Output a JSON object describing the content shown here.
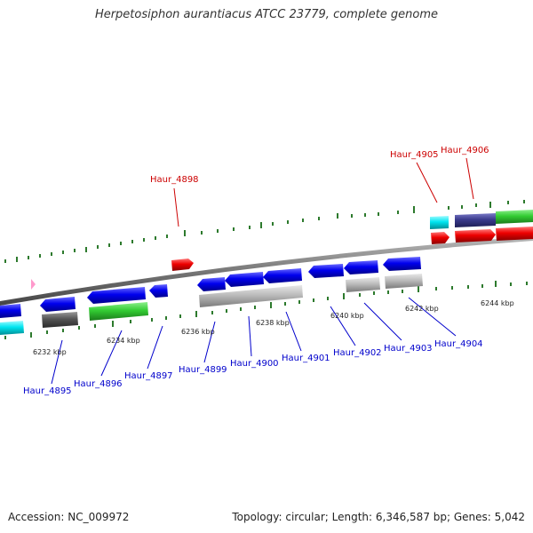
{
  "title": "Herpetosiphon aurantiacus ATCC 23779, complete genome",
  "footer": {
    "accession": "Accession: NC_009972",
    "summary": "Topology: circular; Length: 6,346,587 bp; Genes: 5,042"
  },
  "scale_ticks": [
    "6232 kbp",
    "6234 kbp",
    "6236 kbp",
    "6238 kbp",
    "6240 kbp",
    "6242 kbp",
    "6244 kbp"
  ],
  "forward_genes": [
    {
      "label": "Haur_4898",
      "color": "#dd0000"
    },
    {
      "label": "Haur_4905",
      "color": "#dd0000"
    },
    {
      "label": "Haur_4906",
      "color": "#dd0000"
    }
  ],
  "reverse_genes": [
    {
      "label": "Haur_4895",
      "color": "#0000dd"
    },
    {
      "label": "Haur_4896",
      "color": "#0000dd"
    },
    {
      "label": "Haur_4897",
      "color": "#0000dd"
    },
    {
      "label": "Haur_4899",
      "color": "#0000dd"
    },
    {
      "label": "Haur_4900",
      "color": "#0000dd"
    },
    {
      "label": "Haur_4901",
      "color": "#0000dd"
    },
    {
      "label": "Haur_4902",
      "color": "#0000dd"
    },
    {
      "label": "Haur_4903",
      "color": "#0000dd"
    },
    {
      "label": "Haur_4904",
      "color": "#0000dd"
    }
  ],
  "feature_colors": {
    "cds_forward": "#ff0000",
    "cds_reverse": "#0000ee",
    "cyan_feature": "#00e5f0",
    "green_feature": "#33cc33",
    "grey_feature": "#bbbbbb",
    "dark_feature": "#555555",
    "purple_feature": "#3a3a8c",
    "pink_marker": "#ff99cc",
    "backbone": "#777777",
    "tick_green": "#2d7a2d"
  }
}
